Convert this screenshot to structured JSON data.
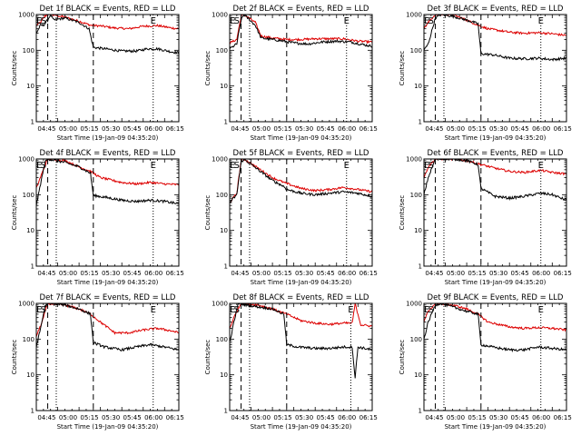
{
  "chart_data": {
    "type": "line",
    "layout": {
      "rows": 3,
      "cols": 3
    },
    "xlabel": "Start Time (19-Jan-09 04:35:20)",
    "ylabel": "Counts/sec",
    "xticks": [
      "04:45",
      "05:00",
      "05:15",
      "05:30",
      "05:45",
      "06:00",
      "06:15"
    ],
    "xlim_minutes_from_start": [
      0,
      100
    ],
    "yscale": "log",
    "ylim": [
      1,
      1000
    ],
    "yticks": [
      "1",
      "10",
      "100",
      "1000"
    ],
    "series_legend_text": "BLACK = Events, RED = LLD",
    "series_colors": {
      "events": "#000000",
      "lld": "#dd0000"
    },
    "panels": [
      {
        "title": "Det 1f BLACK = Events, RED = LLD",
        "markers": [
          {
            "label": "E",
            "x": 2
          },
          {
            "label": "S",
            "x": 5
          },
          {
            "label": "E",
            "x": 82
          }
        ],
        "dashed": [
          8,
          40
        ],
        "dotted": [
          14,
          82
        ],
        "events": [
          [
            0,
            300
          ],
          [
            3,
            500
          ],
          [
            5,
            500
          ],
          [
            8,
            700
          ],
          [
            10,
            1000
          ],
          [
            12,
            700
          ],
          [
            20,
            800
          ],
          [
            30,
            600
          ],
          [
            37,
            400
          ],
          [
            40,
            120
          ],
          [
            48,
            110
          ],
          [
            60,
            95
          ],
          [
            70,
            95
          ],
          [
            78,
            110
          ],
          [
            85,
            110
          ],
          [
            95,
            90
          ],
          [
            100,
            85
          ]
        ],
        "lld": [
          [
            0,
            500
          ],
          [
            3,
            600
          ],
          [
            6,
            900
          ],
          [
            8,
            1000
          ],
          [
            10,
            1000
          ],
          [
            20,
            850
          ],
          [
            30,
            650
          ],
          [
            38,
            500
          ],
          [
            45,
            480
          ],
          [
            55,
            420
          ],
          [
            65,
            400
          ],
          [
            75,
            470
          ],
          [
            85,
            490
          ],
          [
            95,
            420
          ],
          [
            100,
            400
          ]
        ]
      },
      {
        "title": "Det 2f BLACK = Events, RED = LLD",
        "markers": [
          {
            "label": "E",
            "x": 2
          },
          {
            "label": "S",
            "x": 5
          },
          {
            "label": "E",
            "x": 82
          }
        ],
        "dashed": [
          8,
          40
        ],
        "dotted": [
          14,
          82
        ],
        "events": [
          [
            0,
            110
          ],
          [
            5,
            150
          ],
          [
            8,
            700
          ],
          [
            10,
            1000
          ],
          [
            18,
            500
          ],
          [
            22,
            220
          ],
          [
            30,
            200
          ],
          [
            38,
            180
          ],
          [
            45,
            160
          ],
          [
            55,
            150
          ],
          [
            65,
            170
          ],
          [
            75,
            180
          ],
          [
            85,
            170
          ],
          [
            95,
            140
          ],
          [
            100,
            130
          ]
        ],
        "lld": [
          [
            0,
            160
          ],
          [
            5,
            200
          ],
          [
            8,
            900
          ],
          [
            10,
            1000
          ],
          [
            18,
            600
          ],
          [
            22,
            250
          ],
          [
            30,
            220
          ],
          [
            40,
            200
          ],
          [
            50,
            200
          ],
          [
            60,
            210
          ],
          [
            70,
            210
          ],
          [
            80,
            210
          ],
          [
            90,
            180
          ],
          [
            100,
            170
          ]
        ]
      },
      {
        "title": "Det 3f BLACK = Events, RED = LLD",
        "markers": [
          {
            "label": "E",
            "x": 2
          },
          {
            "label": "S",
            "x": 5
          },
          {
            "label": "E",
            "x": 82
          }
        ],
        "dashed": [
          8,
          40
        ],
        "dotted": [
          14,
          82
        ],
        "events": [
          [
            0,
            100
          ],
          [
            3,
            150
          ],
          [
            8,
            800
          ],
          [
            12,
            1000
          ],
          [
            20,
            900
          ],
          [
            30,
            700
          ],
          [
            38,
            550
          ],
          [
            40,
            80
          ],
          [
            48,
            75
          ],
          [
            60,
            60
          ],
          [
            70,
            58
          ],
          [
            80,
            60
          ],
          [
            90,
            55
          ],
          [
            100,
            60
          ]
        ],
        "lld": [
          [
            0,
            400
          ],
          [
            3,
            600
          ],
          [
            8,
            1000
          ],
          [
            20,
            1000
          ],
          [
            30,
            700
          ],
          [
            38,
            500
          ],
          [
            45,
            400
          ],
          [
            60,
            320
          ],
          [
            70,
            300
          ],
          [
            80,
            310
          ],
          [
            90,
            290
          ],
          [
            100,
            260
          ]
        ]
      },
      {
        "title": "Det 4f BLACK = Events, RED = LLD",
        "markers": [
          {
            "label": "E",
            "x": 2
          },
          {
            "label": "S",
            "x": 5
          },
          {
            "label": "E",
            "x": 82
          }
        ],
        "dashed": [
          8,
          40
        ],
        "dotted": [
          14,
          82
        ],
        "events": [
          [
            0,
            50
          ],
          [
            3,
            200
          ],
          [
            6,
            800
          ],
          [
            8,
            1000
          ],
          [
            20,
            800
          ],
          [
            30,
            600
          ],
          [
            38,
            400
          ],
          [
            40,
            95
          ],
          [
            48,
            85
          ],
          [
            60,
            70
          ],
          [
            70,
            65
          ],
          [
            80,
            70
          ],
          [
            90,
            65
          ],
          [
            100,
            55
          ]
        ],
        "lld": [
          [
            0,
            150
          ],
          [
            4,
            400
          ],
          [
            8,
            1000
          ],
          [
            20,
            900
          ],
          [
            30,
            600
          ],
          [
            38,
            450
          ],
          [
            45,
            300
          ],
          [
            60,
            220
          ],
          [
            70,
            200
          ],
          [
            80,
            220
          ],
          [
            90,
            200
          ],
          [
            100,
            190
          ]
        ]
      },
      {
        "title": "Det 5f BLACK = Events, RED = LLD",
        "markers": [
          {
            "label": "E",
            "x": 2
          },
          {
            "label": "S",
            "x": 5
          },
          {
            "label": "E",
            "x": 82
          }
        ],
        "dashed": [
          8,
          40
        ],
        "dotted": [
          14,
          82
        ],
        "events": [
          [
            0,
            60
          ],
          [
            5,
            100
          ],
          [
            8,
            800
          ],
          [
            10,
            1000
          ],
          [
            20,
            500
          ],
          [
            30,
            250
          ],
          [
            38,
            170
          ],
          [
            40,
            140
          ],
          [
            50,
            110
          ],
          [
            60,
            100
          ],
          [
            70,
            110
          ],
          [
            80,
            120
          ],
          [
            90,
            110
          ],
          [
            100,
            90
          ]
        ],
        "lld": [
          [
            0,
            60
          ],
          [
            5,
            110
          ],
          [
            8,
            900
          ],
          [
            10,
            1000
          ],
          [
            20,
            550
          ],
          [
            30,
            300
          ],
          [
            38,
            220
          ],
          [
            50,
            150
          ],
          [
            60,
            130
          ],
          [
            70,
            140
          ],
          [
            80,
            160
          ],
          [
            90,
            140
          ],
          [
            100,
            120
          ]
        ]
      },
      {
        "title": "Det 6f BLACK = Events, RED = LLD",
        "markers": [
          {
            "label": "E",
            "x": 2
          },
          {
            "label": "S",
            "x": 5
          },
          {
            "label": "E",
            "x": 82
          }
        ],
        "dashed": [
          8,
          40
        ],
        "dotted": [
          14,
          82
        ],
        "events": [
          [
            0,
            100
          ],
          [
            3,
            300
          ],
          [
            8,
            1000
          ],
          [
            20,
            1000
          ],
          [
            30,
            900
          ],
          [
            38,
            700
          ],
          [
            40,
            150
          ],
          [
            50,
            90
          ],
          [
            60,
            80
          ],
          [
            70,
            90
          ],
          [
            82,
            110
          ],
          [
            90,
            100
          ],
          [
            100,
            70
          ]
        ],
        "lld": [
          [
            0,
            300
          ],
          [
            3,
            600
          ],
          [
            8,
            1000
          ],
          [
            20,
            1000
          ],
          [
            30,
            900
          ],
          [
            40,
            700
          ],
          [
            50,
            550
          ],
          [
            60,
            450
          ],
          [
            70,
            420
          ],
          [
            82,
            480
          ],
          [
            90,
            420
          ],
          [
            100,
            380
          ]
        ]
      },
      {
        "title": "Det 7f BLACK = Events, RED = LLD",
        "markers": [
          {
            "label": "E",
            "x": 2
          },
          {
            "label": "S",
            "x": 5
          },
          {
            "label": "E",
            "x": 82
          }
        ],
        "dashed": [
          8,
          40
        ],
        "dotted": [
          14,
          82
        ],
        "events": [
          [
            0,
            60
          ],
          [
            3,
            200
          ],
          [
            6,
            800
          ],
          [
            8,
            1000
          ],
          [
            20,
            900
          ],
          [
            30,
            700
          ],
          [
            38,
            500
          ],
          [
            40,
            80
          ],
          [
            48,
            60
          ],
          [
            60,
            50
          ],
          [
            70,
            60
          ],
          [
            80,
            70
          ],
          [
            90,
            60
          ],
          [
            100,
            50
          ]
        ],
        "lld": [
          [
            0,
            120
          ],
          [
            4,
            300
          ],
          [
            8,
            1000
          ],
          [
            20,
            900
          ],
          [
            30,
            700
          ],
          [
            38,
            500
          ],
          [
            45,
            300
          ],
          [
            55,
            150
          ],
          [
            65,
            150
          ],
          [
            75,
            180
          ],
          [
            85,
            200
          ],
          [
            95,
            170
          ],
          [
            100,
            150
          ]
        ]
      },
      {
        "title": "Det 8f BLACK = Events, RED = LLD",
        "markers": [
          {
            "label": "E",
            "x": 2
          },
          {
            "label": "S",
            "x": 5
          },
          {
            "label": "E",
            "x": 85
          }
        ],
        "dashed": [
          8,
          40
        ],
        "dotted": [
          14,
          85
        ],
        "events": [
          [
            0,
            80
          ],
          [
            3,
            300
          ],
          [
            6,
            1000
          ],
          [
            12,
            900
          ],
          [
            20,
            800
          ],
          [
            30,
            700
          ],
          [
            38,
            500
          ],
          [
            40,
            70
          ],
          [
            48,
            60
          ],
          [
            60,
            55
          ],
          [
            70,
            55
          ],
          [
            80,
            60
          ],
          [
            86,
            60
          ],
          [
            88,
            8
          ],
          [
            90,
            60
          ],
          [
            100,
            50
          ]
        ],
        "lld": [
          [
            0,
            200
          ],
          [
            4,
            500
          ],
          [
            8,
            1000
          ],
          [
            20,
            900
          ],
          [
            30,
            700
          ],
          [
            40,
            500
          ],
          [
            50,
            330
          ],
          [
            60,
            280
          ],
          [
            70,
            260
          ],
          [
            80,
            280
          ],
          [
            86,
            280
          ],
          [
            88,
            1000
          ],
          [
            92,
            250
          ],
          [
            100,
            230
          ]
        ]
      },
      {
        "title": "Det 9f BLACK = Events, RED = LLD",
        "markers": [
          {
            "label": "E",
            "x": 2
          },
          {
            "label": "S",
            "x": 5
          },
          {
            "label": "E",
            "x": 82
          }
        ],
        "dashed": [
          8,
          40
        ],
        "dotted": [
          14,
          82
        ],
        "events": [
          [
            0,
            100
          ],
          [
            3,
            300
          ],
          [
            8,
            900
          ],
          [
            12,
            1000
          ],
          [
            20,
            800
          ],
          [
            30,
            600
          ],
          [
            38,
            500
          ],
          [
            40,
            70
          ],
          [
            48,
            60
          ],
          [
            60,
            50
          ],
          [
            70,
            50
          ],
          [
            80,
            60
          ],
          [
            90,
            55
          ],
          [
            100,
            50
          ]
        ],
        "lld": [
          [
            0,
            300
          ],
          [
            3,
            600
          ],
          [
            8,
            1000
          ],
          [
            20,
            900
          ],
          [
            30,
            700
          ],
          [
            38,
            500
          ],
          [
            45,
            300
          ],
          [
            60,
            220
          ],
          [
            70,
            200
          ],
          [
            80,
            210
          ],
          [
            90,
            200
          ],
          [
            100,
            180
          ]
        ]
      }
    ]
  }
}
